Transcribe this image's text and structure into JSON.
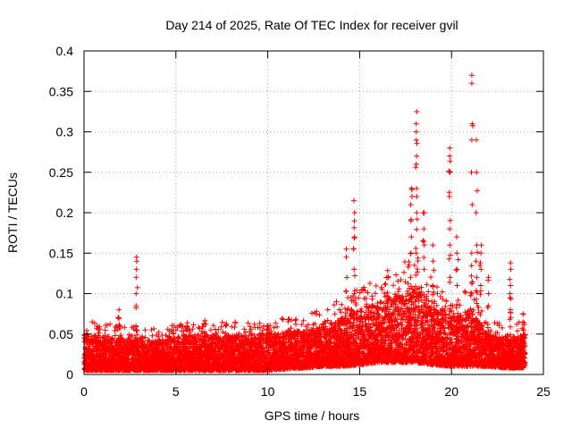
{
  "chart_data": {
    "type": "scatter",
    "title": "Day 214 of 2025, Rate Of TEC Index for receiver gvil",
    "xlabel": "GPS time / hours",
    "ylabel": "ROTI / TECUs",
    "xlim": [
      0,
      25
    ],
    "ylim": [
      0,
      0.4
    ],
    "x_ticks": [
      0,
      5,
      10,
      15,
      20,
      25
    ],
    "y_ticks": [
      0,
      0.05,
      0.1,
      0.15,
      0.2,
      0.25,
      0.3,
      0.35,
      0.4
    ],
    "x_tick_labels": [
      "0",
      "5",
      "10",
      "15",
      "20",
      "25"
    ],
    "y_tick_labels": [
      "0",
      "0.05",
      "0.1",
      "0.15",
      "0.2",
      "0.25",
      "0.3",
      "0.35",
      "0.4"
    ],
    "grid": true,
    "marker": "plus",
    "color": "#ff0000",
    "series": [
      {
        "name": "ROTI",
        "baseline_profile": {
          "x": [
            0,
            2,
            4,
            6,
            8,
            10,
            12,
            13,
            14,
            15,
            16,
            17,
            18,
            19,
            20,
            21,
            22,
            23,
            24
          ],
          "upper_envelope": [
            0.05,
            0.045,
            0.042,
            0.05,
            0.048,
            0.05,
            0.055,
            0.06,
            0.07,
            0.08,
            0.09,
            0.1,
            0.11,
            0.09,
            0.07,
            0.08,
            0.05,
            0.045,
            0.05
          ],
          "lower_envelope": [
            0.005,
            0.005,
            0.005,
            0.005,
            0.005,
            0.005,
            0.008,
            0.01,
            0.01,
            0.012,
            0.015,
            0.015,
            0.015,
            0.012,
            0.01,
            0.01,
            0.01,
            0.008,
            0.008
          ]
        },
        "spikes": [
          {
            "x": 1.9,
            "values": [
              0.06,
              0.07,
              0.08
            ]
          },
          {
            "x": 2.85,
            "values": [
              0.085,
              0.1,
              0.12,
              0.13,
              0.14,
              0.145
            ]
          },
          {
            "x": 5.6,
            "values": [
              0.055,
              0.06
            ]
          },
          {
            "x": 10.0,
            "values": [
              0.055,
              0.06
            ]
          },
          {
            "x": 14.3,
            "values": [
              0.08,
              0.12,
              0.145,
              0.155
            ]
          },
          {
            "x": 14.7,
            "values": [
              0.1,
              0.13,
              0.155,
              0.17,
              0.19,
              0.2,
              0.215
            ]
          },
          {
            "x": 17.8,
            "values": [
              0.12,
              0.15,
              0.17,
              0.19,
              0.21,
              0.23
            ]
          },
          {
            "x": 18.1,
            "values": [
              0.15,
              0.2,
              0.23,
              0.26,
              0.27,
              0.29,
              0.3,
              0.31,
              0.325
            ]
          },
          {
            "x": 18.5,
            "values": [
              0.13,
              0.16,
              0.18,
              0.2
            ]
          },
          {
            "x": 19.0,
            "values": [
              0.11,
              0.14,
              0.16
            ]
          },
          {
            "x": 19.9,
            "values": [
              0.12,
              0.16,
              0.18,
              0.22,
              0.25,
              0.27,
              0.28
            ]
          },
          {
            "x": 20.3,
            "values": [
              0.11,
              0.13,
              0.15,
              0.17
            ]
          },
          {
            "x": 21.1,
            "values": [
              0.15,
              0.21,
              0.25,
              0.29,
              0.31,
              0.36,
              0.37
            ]
          },
          {
            "x": 21.35,
            "values": [
              0.12,
              0.14,
              0.16,
              0.2,
              0.25,
              0.29
            ]
          },
          {
            "x": 21.6,
            "values": [
              0.11,
              0.13,
              0.15,
              0.16
            ]
          },
          {
            "x": 22.0,
            "values": [
              0.085,
              0.1,
              0.12
            ]
          },
          {
            "x": 23.2,
            "values": [
              0.08,
              0.095,
              0.11,
              0.13,
              0.138
            ]
          },
          {
            "x": 23.9,
            "values": [
              0.065,
              0.075
            ]
          }
        ]
      }
    ]
  }
}
